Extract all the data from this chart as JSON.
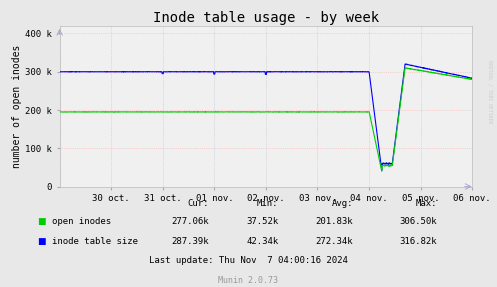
{
  "title": "Inode table usage - by week",
  "ylabel": "number of open inodes",
  "background_color": "#e8e8e8",
  "plot_bg_color": "#f0f0f0",
  "ytick_labels": [
    "0",
    "100 k",
    "200 k",
    "300 k",
    "400 k"
  ],
  "ytick_vals": [
    0,
    100000,
    200000,
    300000,
    400000
  ],
  "xtick_labels": [
    "30 oct.",
    "31 oct.",
    "01 nov.",
    "02 nov.",
    "03 nov.",
    "04 nov.",
    "05 nov.",
    "06 nov."
  ],
  "ylim": [
    0,
    420000
  ],
  "xlim": [
    0,
    8
  ],
  "line_green_color": "#00cc00",
  "line_blue_color": "#0000ff",
  "stats_open_inodes": [
    "277.06k",
    "37.52k",
    "201.83k",
    "306.50k"
  ],
  "stats_inode_table": [
    "287.39k",
    "42.34k",
    "272.34k",
    "316.82k"
  ],
  "last_update": "Last update: Thu Nov  7 04:00:16 2024",
  "munin_version": "Munin 2.0.73",
  "watermark": "RRDTOOL / TOBI OETIKER",
  "title_fontsize": 10,
  "axis_label_fontsize": 7,
  "tick_fontsize": 6.5,
  "stats_fontsize": 6.5
}
